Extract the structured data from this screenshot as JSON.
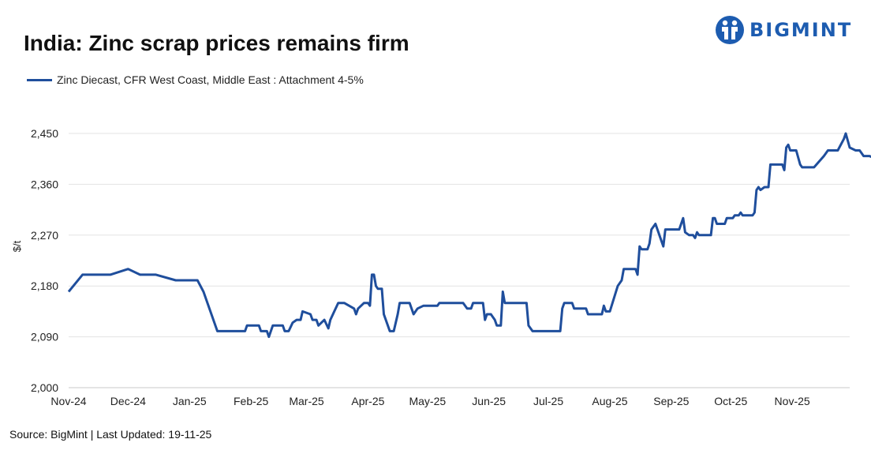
{
  "title": "India: Zinc scrap prices remains firm",
  "brand": {
    "name": "BIGMINT",
    "color": "#1d5cb0"
  },
  "footnote": "Source: BigMint | Last Updated: 19-11-25",
  "chart_data": {
    "type": "line",
    "title": "India: Zinc scrap prices remains firm",
    "xlabel": "",
    "ylabel": "$/t",
    "ylim": [
      2000,
      2450
    ],
    "yticks": [
      2000,
      2090,
      2180,
      2270,
      2360,
      2450
    ],
    "ytick_labels": [
      "2,000",
      "2,090",
      "2,180",
      "2,270",
      "2,360",
      "2,450"
    ],
    "xlim": [
      "2024-11-01",
      "2025-11-30"
    ],
    "xticks": [
      "2024-11-01",
      "2024-12-01",
      "2025-01-01",
      "2025-02-01",
      "2025-03-01",
      "2025-04-01",
      "2025-05-01",
      "2025-06-01",
      "2025-07-01",
      "2025-08-01",
      "2025-09-01",
      "2025-10-01",
      "2025-11-01"
    ],
    "xtick_labels": [
      "Nov-24",
      "Dec-24",
      "Jan-25",
      "Feb-25",
      "Mar-25",
      "Apr-25",
      "May-25",
      "Jun-25",
      "Jul-25",
      "Aug-25",
      "Sep-25",
      "Oct-25",
      "Nov-25"
    ],
    "grid": "horizontal",
    "legend_position": "top-left",
    "series": [
      {
        "name": "Zinc Diecast, CFR West Coast, Middle East : Attachment 4-5%",
        "color": "#1f4e9c",
        "points": [
          [
            "2024-11-01",
            2170
          ],
          [
            "2024-11-08",
            2200
          ],
          [
            "2024-11-15",
            2200
          ],
          [
            "2024-11-22",
            2200
          ],
          [
            "2024-12-01",
            2210
          ],
          [
            "2024-12-07",
            2200
          ],
          [
            "2024-12-15",
            2200
          ],
          [
            "2024-12-25",
            2190
          ],
          [
            "2025-01-05",
            2190
          ],
          [
            "2025-01-08",
            2170
          ],
          [
            "2025-01-15",
            2100
          ],
          [
            "2025-01-22",
            2100
          ],
          [
            "2025-01-29",
            2100
          ],
          [
            "2025-01-30",
            2110
          ],
          [
            "2025-02-05",
            2110
          ],
          [
            "2025-02-06",
            2100
          ],
          [
            "2025-02-09",
            2100
          ],
          [
            "2025-02-10",
            2090
          ],
          [
            "2025-02-12",
            2110
          ],
          [
            "2025-02-17",
            2110
          ],
          [
            "2025-02-18",
            2100
          ],
          [
            "2025-02-20",
            2100
          ],
          [
            "2025-02-22",
            2115
          ],
          [
            "2025-02-24",
            2120
          ],
          [
            "2025-02-26",
            2120
          ],
          [
            "2025-02-27",
            2135
          ],
          [
            "2025-03-03",
            2130
          ],
          [
            "2025-03-04",
            2120
          ],
          [
            "2025-03-06",
            2120
          ],
          [
            "2025-03-07",
            2110
          ],
          [
            "2025-03-10",
            2120
          ],
          [
            "2025-03-12",
            2105
          ],
          [
            "2025-03-13",
            2120
          ],
          [
            "2025-03-15",
            2135
          ],
          [
            "2025-03-17",
            2150
          ],
          [
            "2025-03-20",
            2150
          ],
          [
            "2025-03-25",
            2140
          ],
          [
            "2025-03-26",
            2130
          ],
          [
            "2025-03-27",
            2140
          ],
          [
            "2025-03-30",
            2150
          ],
          [
            "2025-04-01",
            2150
          ],
          [
            "2025-04-02",
            2145
          ],
          [
            "2025-04-03",
            2200
          ],
          [
            "2025-04-04",
            2200
          ],
          [
            "2025-04-05",
            2180
          ],
          [
            "2025-04-06",
            2175
          ],
          [
            "2025-04-08",
            2175
          ],
          [
            "2025-04-09",
            2130
          ],
          [
            "2025-04-12",
            2100
          ],
          [
            "2025-04-14",
            2100
          ],
          [
            "2025-04-16",
            2130
          ],
          [
            "2025-04-17",
            2150
          ],
          [
            "2025-04-22",
            2150
          ],
          [
            "2025-04-24",
            2130
          ],
          [
            "2025-04-26",
            2140
          ],
          [
            "2025-04-29",
            2145
          ],
          [
            "2025-05-06",
            2145
          ],
          [
            "2025-05-07",
            2150
          ],
          [
            "2025-05-19",
            2150
          ],
          [
            "2025-05-21",
            2140
          ],
          [
            "2025-05-23",
            2140
          ],
          [
            "2025-05-24",
            2150
          ],
          [
            "2025-05-29",
            2150
          ],
          [
            "2025-05-30",
            2120
          ],
          [
            "2025-05-31",
            2130
          ],
          [
            "2025-06-02",
            2130
          ],
          [
            "2025-06-04",
            2120
          ],
          [
            "2025-06-05",
            2110
          ],
          [
            "2025-06-07",
            2110
          ],
          [
            "2025-06-08",
            2170
          ],
          [
            "2025-06-09",
            2150
          ],
          [
            "2025-06-20",
            2150
          ],
          [
            "2025-06-21",
            2110
          ],
          [
            "2025-06-23",
            2100
          ],
          [
            "2025-07-07",
            2100
          ],
          [
            "2025-07-08",
            2140
          ],
          [
            "2025-07-09",
            2150
          ],
          [
            "2025-07-13",
            2150
          ],
          [
            "2025-07-14",
            2140
          ],
          [
            "2025-07-20",
            2140
          ],
          [
            "2025-07-21",
            2130
          ],
          [
            "2025-07-28",
            2130
          ],
          [
            "2025-07-29",
            2145
          ],
          [
            "2025-07-30",
            2135
          ],
          [
            "2025-08-01",
            2135
          ],
          [
            "2025-08-05",
            2180
          ],
          [
            "2025-08-07",
            2190
          ],
          [
            "2025-08-08",
            2210
          ],
          [
            "2025-08-14",
            2210
          ],
          [
            "2025-08-15",
            2200
          ],
          [
            "2025-08-16",
            2250
          ],
          [
            "2025-08-17",
            2245
          ],
          [
            "2025-08-20",
            2245
          ],
          [
            "2025-08-21",
            2255
          ],
          [
            "2025-08-22",
            2280
          ],
          [
            "2025-08-24",
            2290
          ],
          [
            "2025-08-25",
            2280
          ],
          [
            "2025-08-27",
            2260
          ],
          [
            "2025-08-28",
            2250
          ],
          [
            "2025-08-29",
            2280
          ],
          [
            "2025-09-03",
            2280
          ],
          [
            "2025-09-05",
            2280
          ],
          [
            "2025-09-07",
            2300
          ],
          [
            "2025-09-08",
            2275
          ],
          [
            "2025-09-10",
            2270
          ],
          [
            "2025-09-12",
            2270
          ],
          [
            "2025-09-13",
            2265
          ],
          [
            "2025-09-14",
            2275
          ],
          [
            "2025-09-15",
            2270
          ],
          [
            "2025-09-21",
            2270
          ],
          [
            "2025-09-22",
            2300
          ],
          [
            "2025-09-23",
            2300
          ],
          [
            "2025-09-24",
            2290
          ],
          [
            "2025-09-28",
            2290
          ],
          [
            "2025-09-29",
            2300
          ],
          [
            "2025-10-02",
            2300
          ],
          [
            "2025-10-03",
            2305
          ],
          [
            "2025-10-05",
            2305
          ],
          [
            "2025-10-06",
            2310
          ],
          [
            "2025-10-07",
            2305
          ],
          [
            "2025-10-12",
            2305
          ],
          [
            "2025-10-13",
            2310
          ],
          [
            "2025-10-14",
            2350
          ],
          [
            "2025-10-15",
            2355
          ],
          [
            "2025-10-16",
            2350
          ],
          [
            "2025-10-18",
            2355
          ],
          [
            "2025-10-20",
            2355
          ],
          [
            "2025-10-21",
            2395
          ],
          [
            "2025-10-27",
            2395
          ],
          [
            "2025-10-28",
            2385
          ],
          [
            "2025-10-29",
            2425
          ],
          [
            "2025-10-30",
            2430
          ],
          [
            "2025-10-31",
            2420
          ],
          [
            "2025-11-03",
            2420
          ],
          [
            "2025-11-05",
            2395
          ],
          [
            "2025-11-06",
            2390
          ],
          [
            "2025-11-12",
            2390
          ],
          [
            "2025-11-17",
            2410
          ],
          [
            "2025-11-19",
            2420
          ],
          [
            "2025-11-24",
            2420
          ],
          [
            "2025-11-27",
            2440
          ],
          [
            "2025-11-28",
            2450
          ],
          [
            "2025-11-30",
            2425
          ],
          [
            "2025-12-03",
            2420
          ],
          [
            "2025-12-05",
            2420
          ],
          [
            "2025-12-06",
            2415
          ],
          [
            "2025-12-07",
            2410
          ],
          [
            "2025-12-10",
            2410
          ],
          [
            "2025-12-13",
            2405
          ],
          [
            "2025-12-14",
            2395
          ],
          [
            "2025-12-16",
            2395
          ]
        ]
      }
    ]
  }
}
